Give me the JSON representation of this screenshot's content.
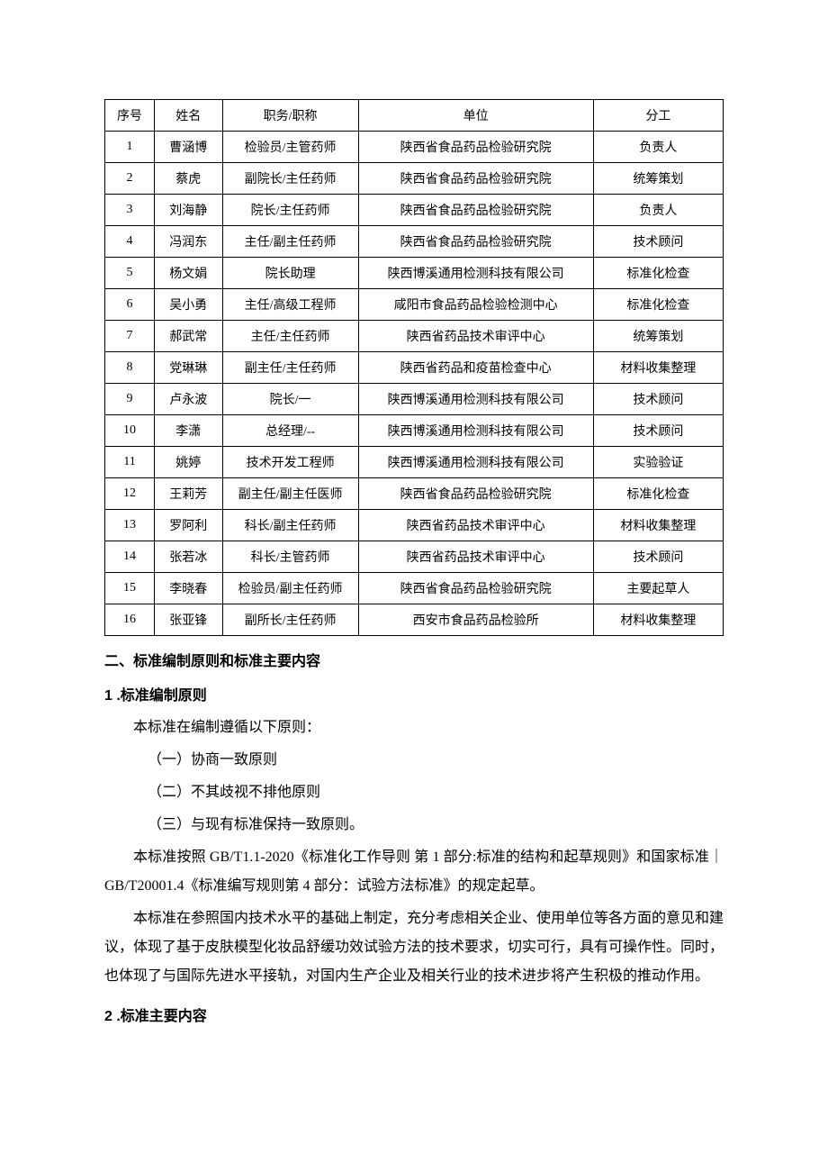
{
  "table": {
    "columns": [
      "序号",
      "姓名",
      "职务/职称",
      "单位",
      "分工"
    ],
    "rows": [
      [
        "1",
        "曹涵博",
        "检验员/主管药师",
        "陕西省食品药品检验研究院",
        "负责人"
      ],
      [
        "2",
        "蔡虎",
        "副院长/主任药师",
        "陕西省食品药品检验研究院",
        "统筹策划"
      ],
      [
        "3",
        "刘海静",
        "院长/主任药师",
        "陕西省食品药品检验研究院",
        "负责人"
      ],
      [
        "4",
        "冯润东",
        "主任/副主任药师",
        "陕西省食品药品检验研究院",
        "技术顾问"
      ],
      [
        "5",
        "杨文娟",
        "院长助理",
        "陕西博溪通用检测科技有限公司",
        "标准化检查"
      ],
      [
        "6",
        "吴小勇",
        "主任/高级工程师",
        "咸阳市食品药品检验检测中心",
        "标准化检查"
      ],
      [
        "7",
        "郝武常",
        "主任/主任药师",
        "陕西省药品技术审评中心",
        "统筹策划"
      ],
      [
        "8",
        "党琳琳",
        "副主任/主任药师",
        "陕西省药品和疫苗检查中心",
        "材料收集整理"
      ],
      [
        "9",
        "卢永波",
        "院长/一",
        "陕西博溪通用检测科技有限公司",
        "技术顾问"
      ],
      [
        "10",
        "李潇",
        "总经理/--",
        "陕西博溪通用检测科技有限公司",
        "技术顾问"
      ],
      [
        "11",
        "姚婷",
        "技术开发工程师",
        "陕西博溪通用检测科技有限公司",
        "实验验证"
      ],
      [
        "12",
        "王莉芳",
        "副主任/副主任医师",
        "陕西省食品药品检验研究院",
        "标准化检查"
      ],
      [
        "13",
        "罗阿利",
        "科长/副主任药师",
        "陕西省药品技术审评中心",
        "材料收集整理"
      ],
      [
        "14",
        "张若冰",
        "科长/主管药师",
        "陕西省药品技术审评中心",
        "技术顾问"
      ],
      [
        "15",
        "李晓春",
        "检验员/副主任药师",
        "陕西省食品药品检验研究院",
        "主要起草人"
      ],
      [
        "16",
        "张亚锋",
        "副所长/主任药师",
        "西安市食品药品检验所",
        "材料收集整理"
      ]
    ]
  },
  "headings": {
    "section2": "二、标准编制原则和标准主要内容",
    "sub1": "1 .标准编制原则",
    "sub2": "2 .标准主要内容"
  },
  "body": {
    "p1": "本标准在编制遵循以下原则：",
    "li1": "（一）协商一致原则",
    "li2": "（二）不其歧视不排他原则",
    "li3": "（三）与现有标准保持一致原则。",
    "p2": "本标准按照 GB/T1.1-2020《标准化工作导则 第 1 部分:标准的结构和起草规则》和国家标准｜GB/T20001.4《标准编写规则第 4 部分：试验方法标准》的规定起草。",
    "p3": "本标准在参照国内技术水平的基础上制定，充分考虑相关企业、使用单位等各方面的意见和建议，体现了基于皮肤模型化妆品舒缓功效试验方法的技术要求，切实可行，具有可操作性。同时，也体现了与国际先进水平接轨，对国内生产企业及相关行业的技术进步将产生积极的推动作用。"
  }
}
